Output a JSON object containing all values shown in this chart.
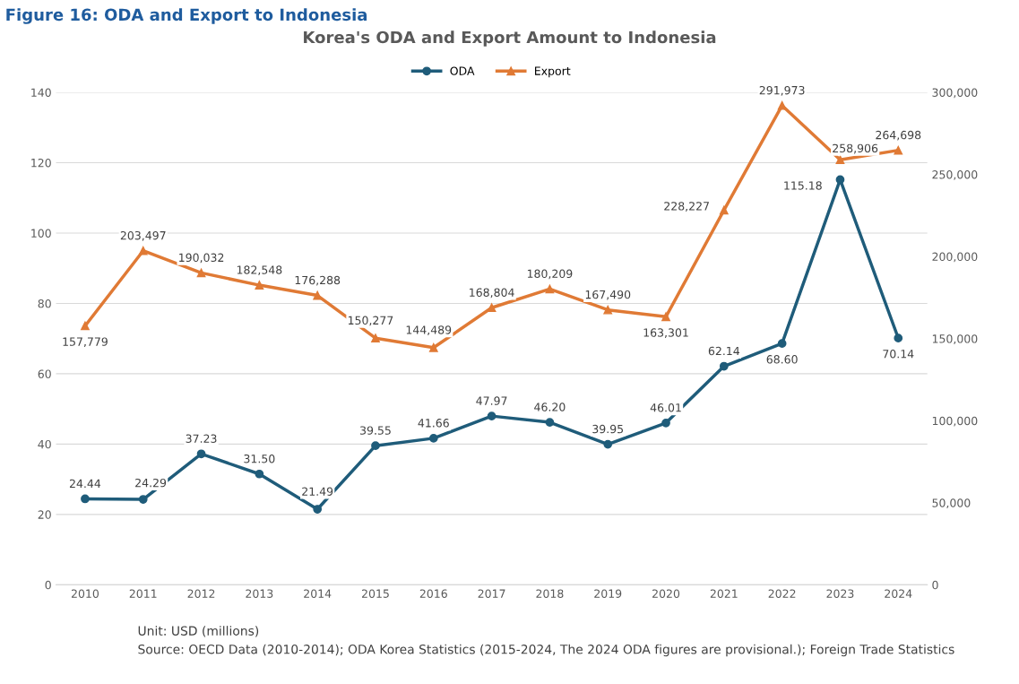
{
  "chart_data": {
    "type": "line",
    "title": "Korea's ODA and Export Amount to Indonesia",
    "categories": [
      "2010",
      "2011",
      "2012",
      "2013",
      "2014",
      "2015",
      "2016",
      "2017",
      "2018",
      "2019",
      "2020",
      "2021",
      "2022",
      "2023",
      "2024"
    ],
    "series": [
      {
        "name": "ODA",
        "color": "#1f5c7a",
        "marker": "circle",
        "values": [
          24.44,
          24.29,
          37.23,
          31.5,
          21.49,
          39.55,
          41.66,
          47.97,
          46.2,
          39.95,
          46.01,
          62.14,
          68.6,
          115.18,
          70.14
        ],
        "value_labels": [
          "24.44",
          "24.29",
          "37.23",
          "31.50",
          "21.49",
          "39.55",
          "41.66",
          "47.97",
          "46.20",
          "39.95",
          "46.01",
          "62.14",
          "68.60",
          "115.18",
          "70.14"
        ]
      },
      {
        "name": "Export",
        "color": "#e07a35",
        "marker": "triangle",
        "axis": "y2",
        "values": [
          157779,
          203497,
          190032,
          182548,
          176288,
          150277,
          144489,
          168804,
          180209,
          167490,
          163301,
          228227,
          291973,
          258906,
          264698
        ],
        "value_labels": [
          "157,779",
          "203,497",
          "190,032",
          "182,548",
          "176,288",
          "150,277",
          "144,489",
          "168,804",
          "180,209",
          "167,490",
          "163,301",
          "228,227",
          "291,973",
          "258,906",
          "264,698"
        ]
      }
    ],
    "ylim": [
      0,
      140
    ],
    "yticks": [
      0,
      20,
      40,
      60,
      80,
      100,
      120,
      140
    ],
    "y2lim": [
      0,
      300000
    ],
    "y2ticks": [
      {
        "value": 0,
        "label": "0"
      },
      {
        "value": 50000,
        "label": "50,000"
      },
      {
        "value": 100000,
        "label": "100,000"
      },
      {
        "value": 150000,
        "label": "150,000"
      },
      {
        "value": 200000,
        "label": "200,000"
      },
      {
        "value": 250000,
        "label": "250,000"
      },
      {
        "value": 300000,
        "label": "300,000"
      }
    ],
    "grid": "y",
    "legend": "top",
    "line_style": "solid",
    "annotations": [
      "Figure 16: ODA and Export to Indonesia",
      "Unit: USD (millions)",
      "Source: OECD Data (2010-2014); ODA Korea Statistics (2015-2024, The 2024 ODA figures are provisional.); Foreign Trade Statistics"
    ]
  }
}
